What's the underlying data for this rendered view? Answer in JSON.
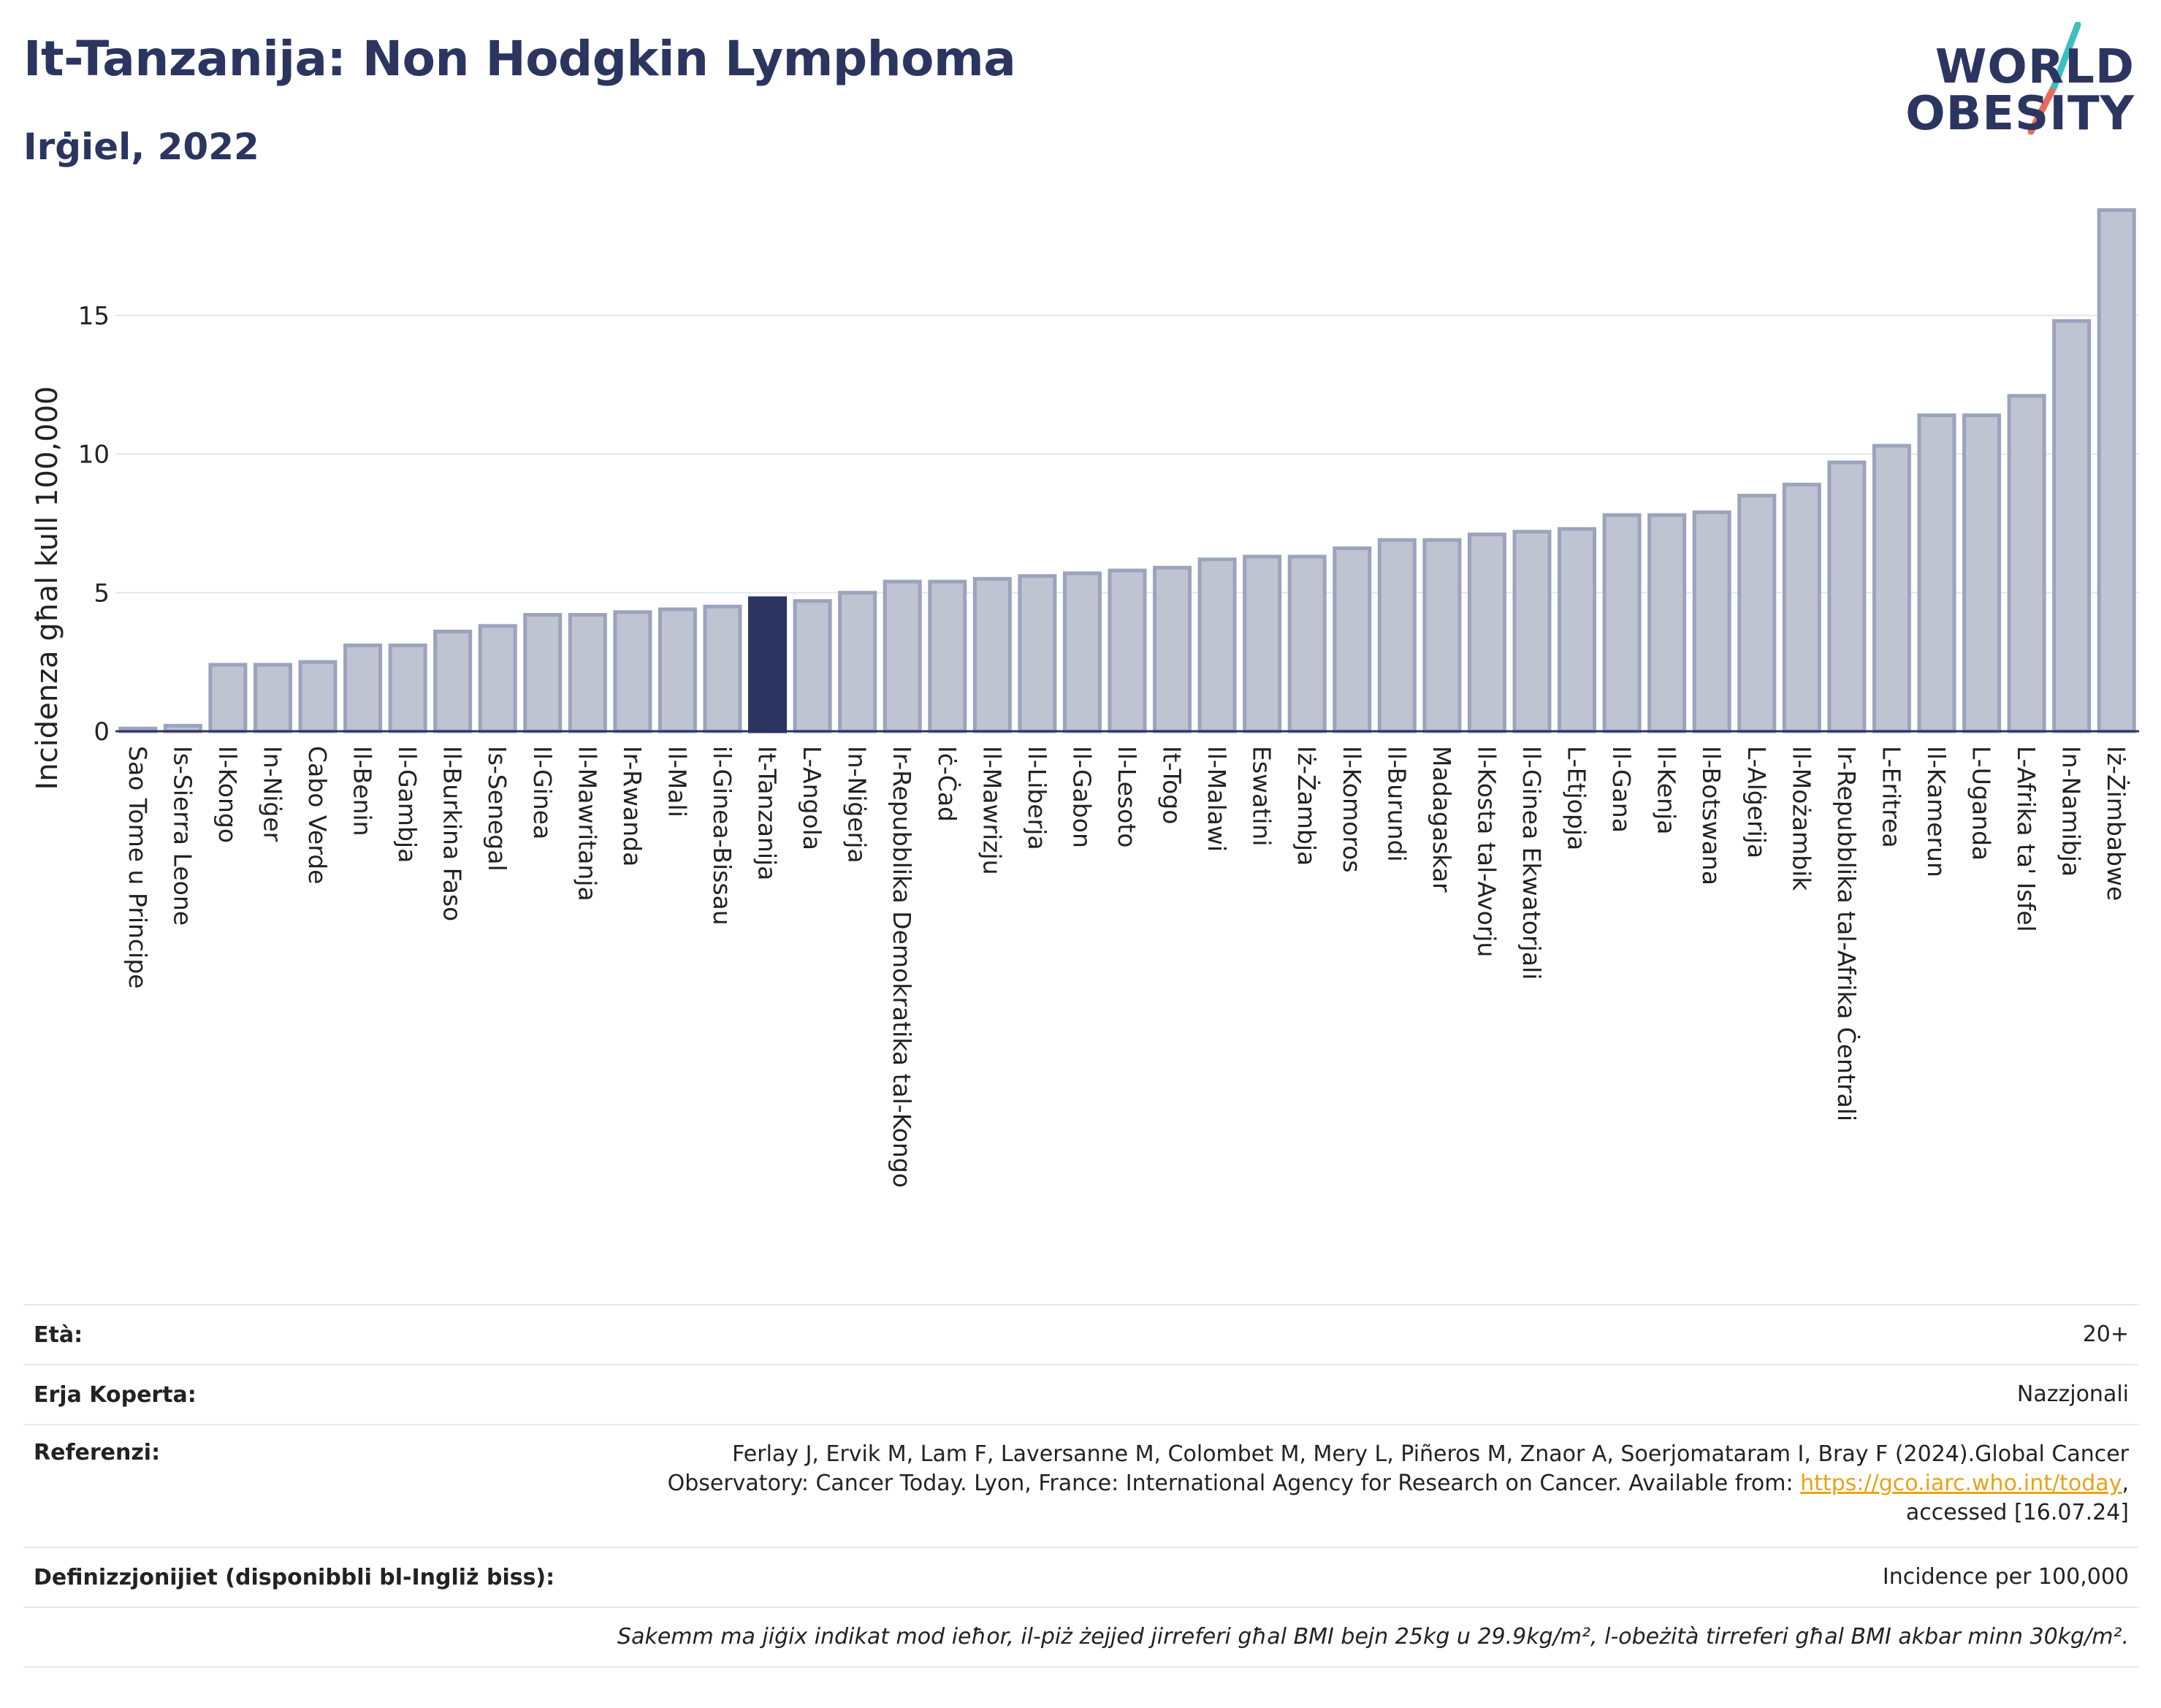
{
  "header": {
    "title": "It-Tanzanija: Non Hodgkin Lymphoma",
    "subtitle": "Irġiel, 2022"
  },
  "logo": {
    "line1": "WORLD",
    "line2": "OBESITY",
    "colors": {
      "text": "#2b3560",
      "slash_top": "#3bbfbf",
      "slash_bottom": "#e86a5a"
    }
  },
  "colors": {
    "bar_fill": "#bfc3d2",
    "bar_stroke": "#9ca3bd",
    "highlight_fill": "#2b3560",
    "grid": "#e4e7ef",
    "axis": "#2b3560"
  },
  "chart_data": {
    "type": "bar",
    "ylabel": "Incidenza għal kull 100,000",
    "ylim": [
      0,
      19
    ],
    "yticks": [
      0,
      5,
      10,
      15
    ],
    "grid": true,
    "highlight": "It-Tanzanija",
    "categories": [
      "Sao Tome u Principe",
      "Is-Sierra Leone",
      "Il-Kongo",
      "In-Niġer",
      "Cabo Verde",
      "Il-Benin",
      "Il-Gambja",
      "Il-Burkina Faso",
      "Is-Senegal",
      "Il-Ginea",
      "Il-Mawritanja",
      "Ir-Rwanda",
      "Il-Mali",
      "il-Ginea-Bissau",
      "It-Tanzanija",
      "L-Angola",
      "In-Niġerja",
      "Ir-Repubblika Demokratika tal-Kongo",
      "Iċ-Ċad",
      "Il-Mawrizju",
      "Il-Liberja",
      "Il-Gabon",
      "Il-Lesoto",
      "It-Togo",
      "Il-Malawi",
      "Eswatini",
      "Iż-Żambja",
      "Il-Komoros",
      "Il-Burundi",
      "Madagaskar",
      "Il-Kosta tal-Avorju",
      "Il-Ginea Ekwatorjali",
      "L-Etjopja",
      "Il-Gana",
      "Il-Kenja",
      "Il-Botswana",
      "L-Alġerija",
      "Il-Możambik",
      "Ir-Repubblika tal-Afrika Ċentrali",
      "L-Eritrea",
      "Il-Kamerun",
      "L-Uganda",
      "L-Afrika ta' Isfel",
      "In-Namibja",
      "Iż-Żimbabwe"
    ],
    "values": [
      0.1,
      0.2,
      2.4,
      2.4,
      2.5,
      3.1,
      3.1,
      3.6,
      3.8,
      4.2,
      4.2,
      4.3,
      4.4,
      4.5,
      4.8,
      4.7,
      5.0,
      5.4,
      5.4,
      5.5,
      5.6,
      5.7,
      5.8,
      5.9,
      6.2,
      6.3,
      6.3,
      6.6,
      6.9,
      6.9,
      7.1,
      7.2,
      7.3,
      7.8,
      7.8,
      7.9,
      8.5,
      8.9,
      9.7,
      10.3,
      11.4,
      11.4,
      12.1,
      14.8,
      18.8
    ]
  },
  "info": {
    "age_label": "Età:",
    "age_value": "20+",
    "area_label": "Erja Koperta:",
    "area_value": "Nazzjonali",
    "ref_label": "Referenzi:",
    "ref_text_1": "Ferlay J, Ervik M, Lam F, Laversanne M, Colombet M, Mery L, Piñeros M, Znaor A, Soerjomataram I, Bray F (2024).Global Cancer",
    "ref_text_2": "Observatory: Cancer Today. Lyon, France: International Agency for Research on Cancer. Available from: ",
    "ref_link": "https://gco.iarc.who.int/today",
    "ref_text_3": ",",
    "ref_text_4": "accessed [16.07.24]",
    "def_label": "Definizzjonijiet (disponibbli bl-Ingliż biss):",
    "def_value": "Incidence per 100,000",
    "note": "Sakemm ma jiġix indikat mod ieħor, il-piż żejjed jirreferi għal BMI bejn 25kg u 29.9kg/m², l-obeżità tirreferi għal BMI akbar minn 30kg/m²."
  }
}
